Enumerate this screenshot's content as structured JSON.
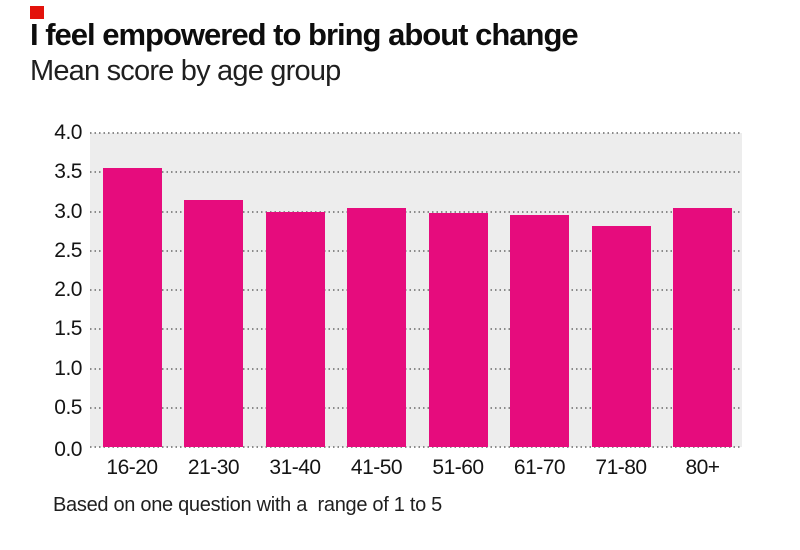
{
  "brand": {
    "accent_square_color": "#e3120b"
  },
  "header": {
    "title": "I feel empowered to bring about change",
    "subtitle": "Mean score by age group"
  },
  "footer": {
    "note": "Based on one question with a  range of 1 to 5"
  },
  "chart_data": {
    "type": "bar",
    "title": "I feel empowered to bring about change",
    "subtitle": "Mean score by age group",
    "categories": [
      "16-20",
      "21-30",
      "31-40",
      "41-50",
      "51-60",
      "61-70",
      "71-80",
      "80+"
    ],
    "values": [
      3.55,
      3.15,
      3.0,
      3.05,
      2.98,
      2.95,
      2.81,
      3.05
    ],
    "xlabel": "",
    "ylabel": "",
    "ylim": [
      0,
      4
    ],
    "ytick_step": 0.5,
    "ytick_labels": [
      "4.0",
      "3.5",
      "3.0",
      "2.5",
      "2.0",
      "1.5",
      "1.0",
      "0.5",
      "0.0"
    ],
    "grid": "dotted horizontal",
    "legend": "none",
    "bar_color": "#e60c7d",
    "plot_bg_color": "#ededed",
    "gridline_color": "#8a8a8a",
    "annotation": "Based on one question with a  range of 1 to 5"
  }
}
